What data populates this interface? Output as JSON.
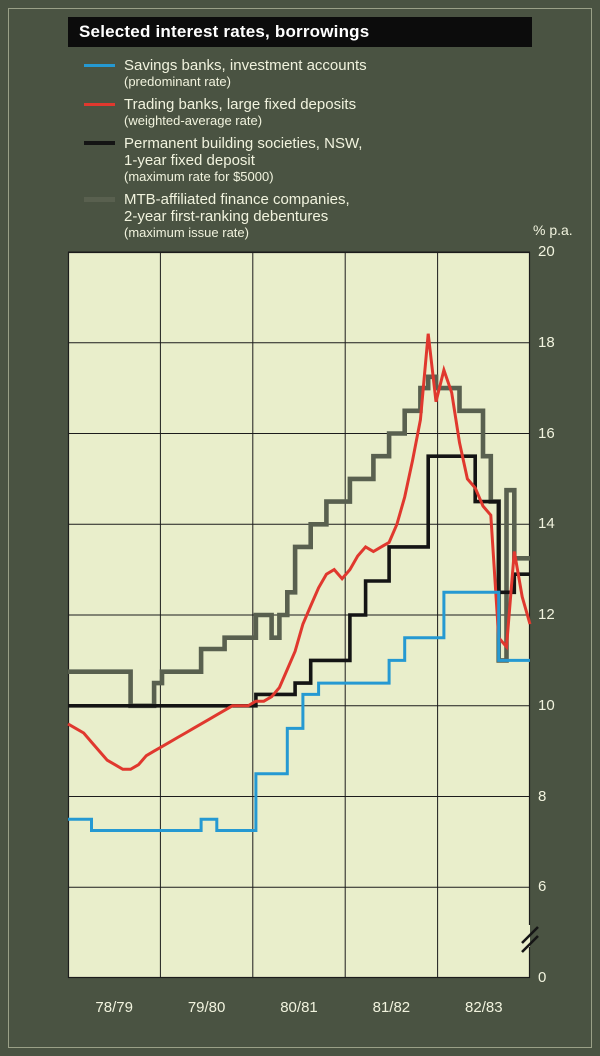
{
  "title": "Selected interest rates, borrowings",
  "axis": {
    "unit_label": "% p.a.",
    "y_ticks": [
      20,
      18,
      16,
      14,
      12,
      10,
      8,
      6,
      0
    ],
    "x_categories": [
      "78/79",
      "79/80",
      "80/81",
      "81/82",
      "82/83"
    ]
  },
  "legend": {
    "items": [
      {
        "name": "savings-banks",
        "color": "#2599d2",
        "thickness": 3,
        "lines": [
          "Savings banks, investment accounts",
          "(predominant rate)"
        ]
      },
      {
        "name": "trading-banks",
        "color": "#e0382e",
        "thickness": 3,
        "lines": [
          "Trading banks, large fixed deposits",
          "(weighted-average rate)"
        ]
      },
      {
        "name": "building-societies",
        "color": "#141414",
        "thickness": 4,
        "lines": [
          "Permanent building societies, NSW,",
          "1-year fixed deposit",
          "(maximum rate for $5000)"
        ]
      },
      {
        "name": "finance-companies",
        "color": "#59604f",
        "thickness": 5,
        "lines": [
          "MTB-affiliated finance companies,",
          "2-year first-ranking debentures",
          "(maximum issue rate)"
        ]
      }
    ]
  },
  "chart_data": {
    "type": "line",
    "title": "Selected interest rates, borrowings",
    "ylabel": "% p.a.",
    "y_ticks": [
      0,
      6,
      8,
      10,
      12,
      14,
      16,
      18,
      20
    ],
    "ylim": [
      6,
      20
    ],
    "y_axis_break": "axis break between 0 and 6",
    "grid": true,
    "legend_position": "top-left",
    "x_categories": [
      "78/79",
      "79/80",
      "80/81",
      "81/82",
      "82/83"
    ],
    "points_per_category": 12,
    "series": [
      {
        "name": "Savings banks, investment accounts (predominant rate)",
        "color": "#2599d2",
        "width": 3,
        "step": true,
        "values": [
          7.5,
          7.5,
          7.5,
          7.25,
          7.25,
          7.25,
          7.25,
          7.25,
          7.25,
          7.25,
          7.25,
          7.25,
          7.25,
          7.25,
          7.25,
          7.25,
          7.25,
          7.5,
          7.5,
          7.25,
          7.25,
          7.25,
          7.25,
          7.25,
          8.5,
          8.5,
          8.5,
          8.5,
          9.5,
          9.5,
          10.25,
          10.25,
          10.5,
          10.5,
          10.5,
          10.5,
          10.5,
          10.5,
          10.5,
          10.5,
          10.5,
          11,
          11,
          11.5,
          11.5,
          11.5,
          11.5,
          11.5,
          12.5,
          12.5,
          12.5,
          12.5,
          12.5,
          12.5,
          12.5,
          11,
          11,
          11,
          11,
          11
        ]
      },
      {
        "name": "Trading banks, large fixed deposits (weighted-average rate)",
        "color": "#e0382e",
        "width": 3,
        "step": false,
        "values": [
          9.6,
          9.5,
          9.4,
          9.2,
          9.0,
          8.8,
          8.7,
          8.6,
          8.6,
          8.7,
          8.9,
          9.0,
          9.1,
          9.2,
          9.3,
          9.4,
          9.5,
          9.6,
          9.7,
          9.8,
          9.9,
          10.0,
          10.0,
          10.0,
          10.1,
          10.1,
          10.2,
          10.4,
          10.8,
          11.2,
          11.8,
          12.2,
          12.6,
          12.9,
          13.0,
          12.8,
          13.0,
          13.3,
          13.5,
          13.4,
          13.5,
          13.6,
          14.0,
          14.6,
          15.4,
          16.3,
          18.2,
          16.7,
          17.4,
          16.9,
          15.8,
          15.0,
          14.8,
          14.4,
          14.2,
          11.5,
          11.3,
          13.4,
          12.4,
          11.8
        ]
      },
      {
        "name": "Permanent building societies, NSW, 1-year fixed deposit (maximum rate for $5000)",
        "color": "#141414",
        "width": 3.6,
        "step": true,
        "values": [
          10,
          10,
          10,
          10,
          10,
          10,
          10,
          10,
          10,
          10,
          10,
          10,
          10,
          10,
          10,
          10,
          10,
          10,
          10,
          10,
          10,
          10,
          10,
          10,
          10.25,
          10.25,
          10.25,
          10.25,
          10.25,
          10.5,
          10.5,
          11,
          11,
          11,
          11,
          11,
          12,
          12,
          12.75,
          12.75,
          12.75,
          13.5,
          13.5,
          13.5,
          13.5,
          13.5,
          15.5,
          15.5,
          15.5,
          15.5,
          15.5,
          15.5,
          14.5,
          14.5,
          14.5,
          12.5,
          12.5,
          12.9,
          12.9,
          12.9
        ]
      },
      {
        "name": "MTB-affiliated finance companies, 2-year first-ranking debentures (maximum issue rate)",
        "color": "#59604f",
        "width": 4.6,
        "step": true,
        "values": [
          10.75,
          10.75,
          10.75,
          10.75,
          10.75,
          10.75,
          10.75,
          10.75,
          10,
          10,
          10,
          10.5,
          10.75,
          10.75,
          10.75,
          10.75,
          10.75,
          11.25,
          11.25,
          11.25,
          11.5,
          11.5,
          11.5,
          11.5,
          12,
          12,
          11.5,
          12,
          12.5,
          13.5,
          13.5,
          14,
          14,
          14.5,
          14.5,
          14.5,
          15,
          15,
          15,
          15.5,
          15.5,
          16,
          16,
          16.5,
          16.5,
          17,
          17.25,
          17,
          17,
          17,
          16.5,
          16.5,
          16.5,
          15.5,
          14.5,
          11,
          14.75,
          13.25,
          13.25,
          13.25
        ]
      }
    ]
  }
}
